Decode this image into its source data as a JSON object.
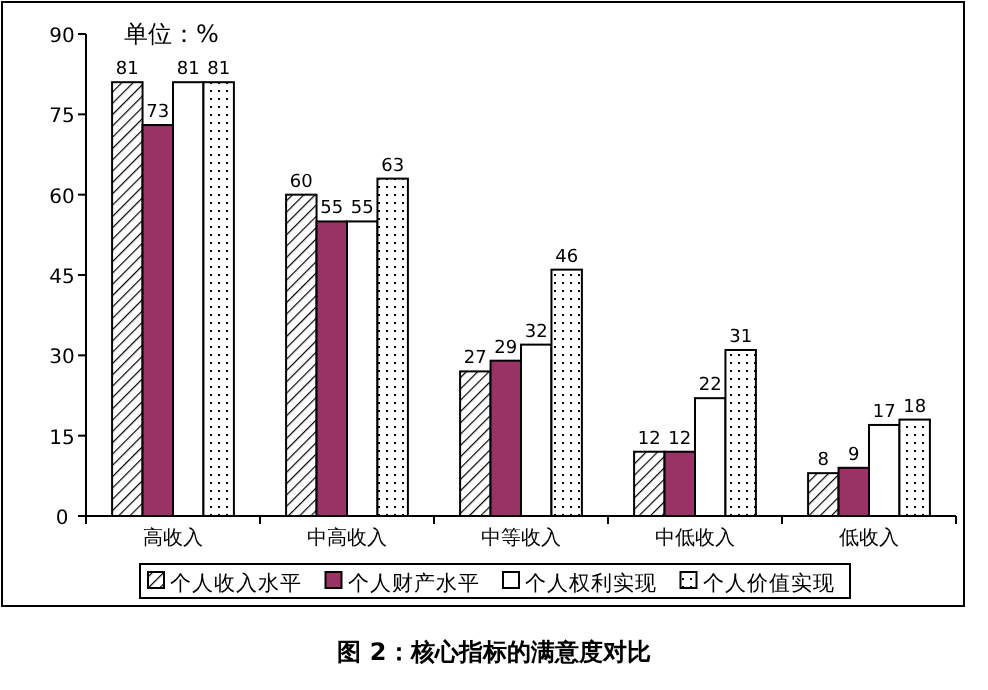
{
  "chart_data": {
    "type": "bar",
    "title": "图 2：核心指标的满意度对比",
    "annotations": [
      "单位：%"
    ],
    "categories": [
      "高收入",
      "中高收入",
      "中等收入",
      "中低收入",
      "低收入"
    ],
    "series": [
      {
        "name": "个人收入水平",
        "color": "#000000",
        "values": [
          81,
          60,
          27,
          12,
          8
        ]
      },
      {
        "name": "个人财产水平",
        "color": "#993366",
        "values": [
          73,
          55,
          29,
          12,
          9
        ]
      },
      {
        "name": "个人权利实现",
        "color": "#ffffff",
        "values": [
          81,
          55,
          32,
          22,
          17
        ]
      },
      {
        "name": "个人价值实现",
        "color": "#000000",
        "values": [
          81,
          63,
          46,
          31,
          18
        ]
      }
    ],
    "ylim": [
      0,
      90
    ],
    "yticks": [
      0,
      15,
      30,
      45,
      60,
      75,
      90
    ],
    "grid": false,
    "legend": "bottom",
    "data_labels": true
  }
}
